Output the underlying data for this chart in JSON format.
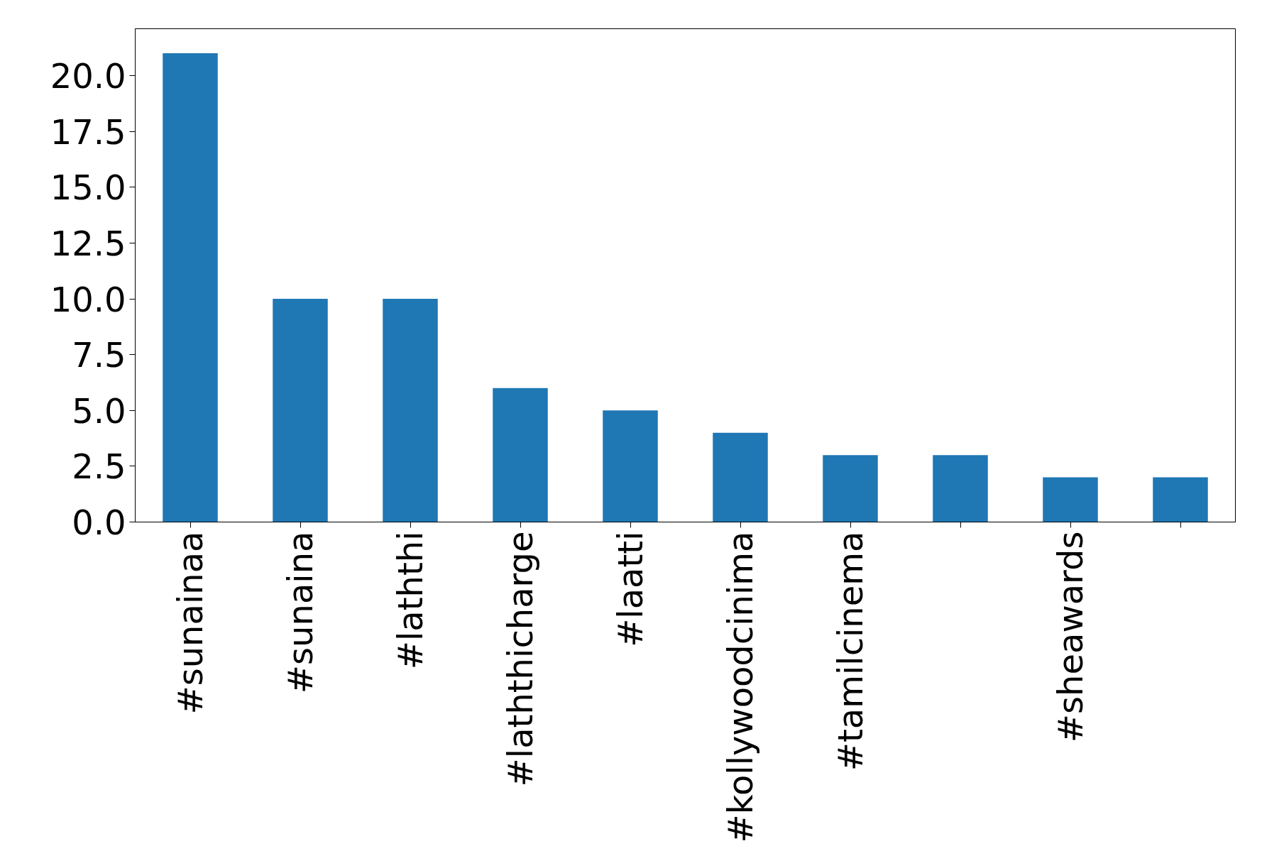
{
  "chart_data": {
    "type": "bar",
    "categories": [
      "#sunainaa",
      "#sunaina",
      "#laththi",
      "#laththicharge",
      "#laatti",
      "#kollywoodcinima",
      "#tamilcinema",
      null,
      "#sheawards",
      null
    ],
    "values": [
      21,
      10,
      10,
      6,
      5,
      4,
      3,
      3,
      2,
      2
    ],
    "color": "#1f77b4",
    "ylim": [
      0,
      22.1
    ],
    "yticks": [
      {
        "value": 0,
        "label": "0.0"
      },
      {
        "value": 2.5,
        "label": "2.5"
      },
      {
        "value": 5,
        "label": "5.0"
      },
      {
        "value": 7.5,
        "label": "7.5"
      },
      {
        "value": 10,
        "label": "10.0"
      },
      {
        "value": 12.5,
        "label": "12.5"
      },
      {
        "value": 15,
        "label": "15.0"
      },
      {
        "value": 17.5,
        "label": "17.5"
      },
      {
        "value": 20,
        "label": "20.0"
      }
    ],
    "grid": false
  }
}
